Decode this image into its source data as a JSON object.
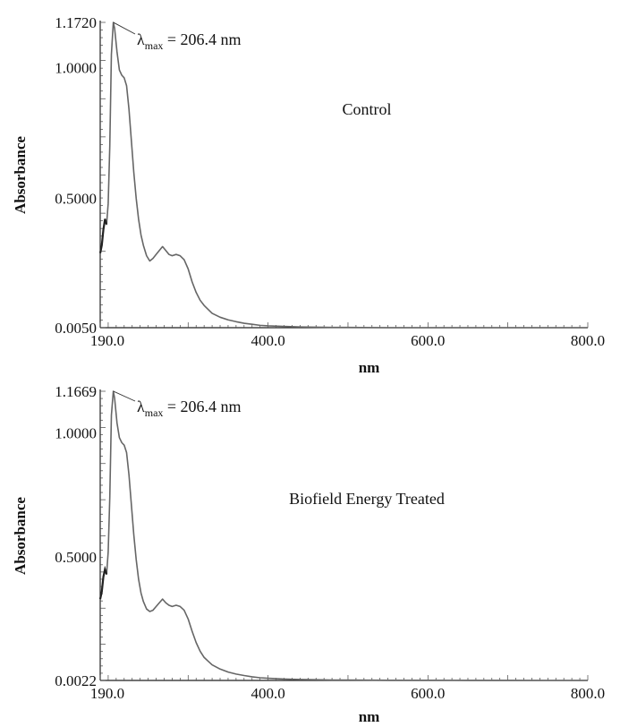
{
  "chart_data": [
    {
      "type": "line",
      "title": "",
      "xlabel": "nm",
      "ylabel": "Absorbance",
      "xlim": [
        190.0,
        800.0
      ],
      "ylim": [
        0.005,
        1.172
      ],
      "x_tick_labels": [
        "190.0",
        "400.0",
        "600.0",
        "800.0"
      ],
      "x_ticks": [
        190,
        400,
        600,
        800
      ],
      "y_tick_labels": [
        "0.0050",
        "0.5000",
        "1.0000",
        "1.1720"
      ],
      "y_ticks": [
        0.005,
        0.5,
        1.0,
        1.172
      ],
      "annotation": {
        "symbol": "λ",
        "sub": "max",
        "text": " = 206.4 nm",
        "x": 206.4,
        "y": 1.172
      },
      "label": "Control",
      "series": [
        {
          "x": [
            190,
            192,
            194,
            196,
            198,
            200,
            202,
            204,
            206.4,
            208,
            211,
            214,
            217,
            220,
            223,
            226,
            229,
            232,
            235,
            238,
            241,
            244,
            248,
            252,
            256,
            260,
            264,
            268,
            272,
            276,
            280,
            285,
            290,
            295,
            300,
            305,
            310,
            315,
            320,
            325,
            330,
            340,
            350,
            360,
            370,
            380,
            390,
            400,
            420,
            440,
            460,
            480,
            500,
            550,
            600,
            650,
            700,
            750,
            800
          ],
          "y": [
            0.29,
            0.32,
            0.38,
            0.42,
            0.4,
            0.48,
            0.7,
            1.05,
            1.172,
            1.15,
            1.06,
            0.99,
            0.97,
            0.96,
            0.93,
            0.84,
            0.72,
            0.6,
            0.5,
            0.42,
            0.36,
            0.32,
            0.28,
            0.26,
            0.27,
            0.285,
            0.3,
            0.315,
            0.3,
            0.285,
            0.28,
            0.285,
            0.28,
            0.265,
            0.23,
            0.18,
            0.14,
            0.11,
            0.09,
            0.075,
            0.06,
            0.045,
            0.035,
            0.028,
            0.022,
            0.018,
            0.014,
            0.012,
            0.01,
            0.008,
            0.007,
            0.006,
            0.006,
            0.005,
            0.005,
            0.005,
            0.005,
            0.005,
            0.005
          ]
        }
      ]
    },
    {
      "type": "line",
      "title": "",
      "xlabel": "nm",
      "ylabel": "Absorbance",
      "xlim": [
        190.0,
        800.0
      ],
      "ylim": [
        0.0022,
        1.1669
      ],
      "x_tick_labels": [
        "190.0",
        "400.0",
        "600.0",
        "800.0"
      ],
      "x_ticks": [
        190,
        400,
        600,
        800
      ],
      "y_tick_labels": [
        "0.0022",
        "0.5000",
        "1.0000",
        "1.1669"
      ],
      "y_ticks": [
        0.0022,
        0.5,
        1.0,
        1.1669
      ],
      "annotation": {
        "symbol": "λ",
        "sub": "max",
        "text": " = 206.4 nm",
        "x": 206.4,
        "y": 1.1669
      },
      "label": "Biofield Energy Treated",
      "series": [
        {
          "x": [
            190,
            192,
            194,
            196,
            198,
            200,
            202,
            204,
            206.4,
            208,
            211,
            214,
            217,
            220,
            223,
            226,
            229,
            232,
            235,
            238,
            241,
            244,
            248,
            252,
            256,
            260,
            264,
            268,
            272,
            276,
            280,
            285,
            290,
            295,
            300,
            305,
            310,
            315,
            320,
            325,
            330,
            340,
            350,
            360,
            370,
            380,
            390,
            400,
            420,
            440,
            460,
            480,
            500,
            550,
            600,
            650,
            700,
            750,
            800
          ],
          "y": [
            0.33,
            0.36,
            0.42,
            0.45,
            0.43,
            0.52,
            0.74,
            1.07,
            1.1669,
            1.14,
            1.04,
            0.98,
            0.96,
            0.95,
            0.92,
            0.83,
            0.71,
            0.59,
            0.49,
            0.41,
            0.355,
            0.32,
            0.29,
            0.28,
            0.285,
            0.3,
            0.315,
            0.33,
            0.315,
            0.305,
            0.3,
            0.305,
            0.3,
            0.285,
            0.25,
            0.2,
            0.155,
            0.12,
            0.095,
            0.08,
            0.065,
            0.048,
            0.036,
            0.028,
            0.022,
            0.017,
            0.013,
            0.011,
            0.008,
            0.006,
            0.005,
            0.004,
            0.004,
            0.003,
            0.003,
            0.0025,
            0.0025,
            0.0022,
            0.0022
          ]
        }
      ]
    }
  ]
}
